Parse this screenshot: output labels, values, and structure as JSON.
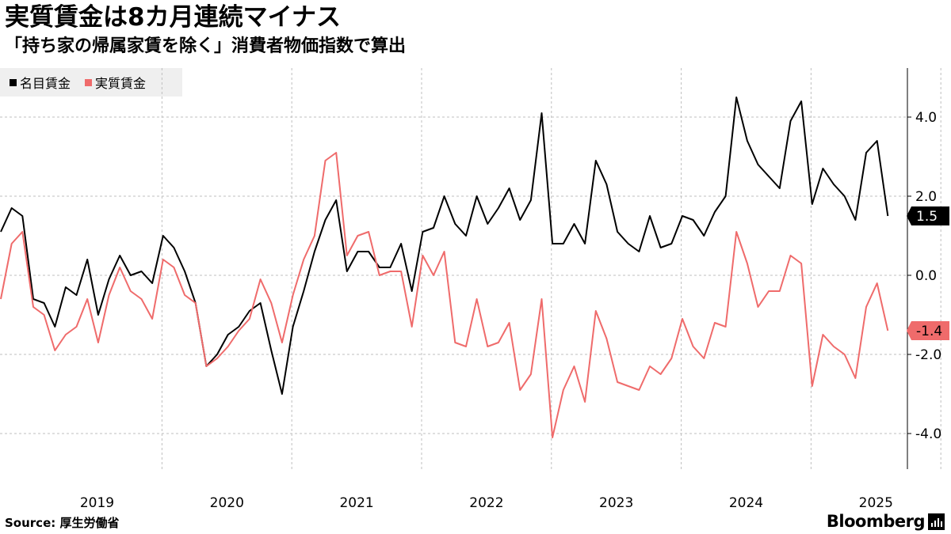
{
  "header": {
    "title": "実質賃金は8カ月連続マイナス",
    "subtitle": "「持ち家の帰属家賃を除く」消費者物価指数で算出"
  },
  "footer": {
    "source_label": "Source:",
    "source_value": "厚生労働省",
    "brand": "Bloomberg",
    "brand_icon": "bloomberg-terminal-icon"
  },
  "colors": {
    "nominal": "#000000",
    "real": "#ef6b6b",
    "grid": "#bfbfbf",
    "legend_bg": "#efefef"
  },
  "chart_data": {
    "type": "line",
    "title": "実質賃金は8カ月連続マイナス",
    "subtitle": "「持ち家の帰属家賃を除く」消費者物価指数で算出",
    "xlabel": "",
    "ylabel": "",
    "ylim": [
      -5.0,
      5.2
    ],
    "y_ticks": [
      4.0,
      2.0,
      0.0,
      -2.0,
      -4.0
    ],
    "y_tick_labels": [
      "4.0",
      "2.0",
      "0.0",
      "-2.0",
      "-4.0"
    ],
    "x_tick_labels": [
      "2019",
      "2020",
      "2021",
      "2022",
      "2023",
      "2024",
      "2025"
    ],
    "x_start": "2018-05",
    "x_end": "2025-06",
    "legend_position": "top-left",
    "grid": true,
    "series": [
      {
        "name": "名目賃金",
        "color": "#000000",
        "last_label": "1.5",
        "values": [
          1.1,
          1.7,
          1.5,
          -0.6,
          -0.7,
          -1.3,
          -0.3,
          -0.5,
          0.4,
          -1.0,
          -0.1,
          0.5,
          0.0,
          0.1,
          -0.2,
          1.0,
          0.7,
          0.1,
          -0.7,
          -2.3,
          -2.0,
          -1.5,
          -1.3,
          -0.9,
          -0.7,
          -1.9,
          -3.0,
          -1.3,
          -0.4,
          0.6,
          1.4,
          1.9,
          0.1,
          0.6,
          0.6,
          0.2,
          0.2,
          0.8,
          -0.4,
          1.1,
          1.2,
          2.0,
          1.3,
          1.0,
          2.0,
          1.3,
          1.7,
          2.2,
          1.4,
          1.9,
          4.1,
          0.8,
          0.8,
          1.3,
          0.8,
          2.9,
          2.3,
          1.1,
          0.8,
          0.6,
          1.5,
          0.7,
          0.8,
          1.5,
          1.4,
          1.0,
          1.6,
          2.0,
          4.5,
          3.4,
          2.8,
          2.5,
          2.2,
          3.9,
          4.4,
          1.8,
          2.7,
          2.3,
          2.0,
          1.4,
          3.1,
          3.4,
          1.5
        ]
      },
      {
        "name": "実質賃金",
        "color": "#ef6b6b",
        "last_label": "-1.4",
        "values": [
          -0.6,
          0.8,
          1.1,
          -0.8,
          -1.0,
          -1.9,
          -1.5,
          -1.3,
          -0.6,
          -1.7,
          -0.5,
          0.2,
          -0.4,
          -0.6,
          -1.1,
          0.4,
          0.2,
          -0.5,
          -0.7,
          -2.3,
          -2.1,
          -1.8,
          -1.4,
          -1.1,
          -0.1,
          -0.7,
          -1.7,
          -0.5,
          0.4,
          1.0,
          2.9,
          3.1,
          0.5,
          1.0,
          1.1,
          0.0,
          0.1,
          0.1,
          -1.3,
          0.5,
          0.0,
          0.6,
          -1.7,
          -1.8,
          -0.6,
          -1.8,
          -1.7,
          -1.2,
          -2.9,
          -2.5,
          -0.6,
          -4.1,
          -2.9,
          -2.3,
          -3.2,
          -0.9,
          -1.6,
          -2.7,
          -2.8,
          -2.9,
          -2.3,
          -2.5,
          -2.1,
          -1.1,
          -1.8,
          -2.1,
          -1.2,
          -1.3,
          1.1,
          0.3,
          -0.8,
          -0.4,
          -0.4,
          0.5,
          0.3,
          -2.8,
          -1.5,
          -1.8,
          -2.0,
          -2.6,
          -0.8,
          -0.2,
          -1.4
        ]
      }
    ]
  }
}
